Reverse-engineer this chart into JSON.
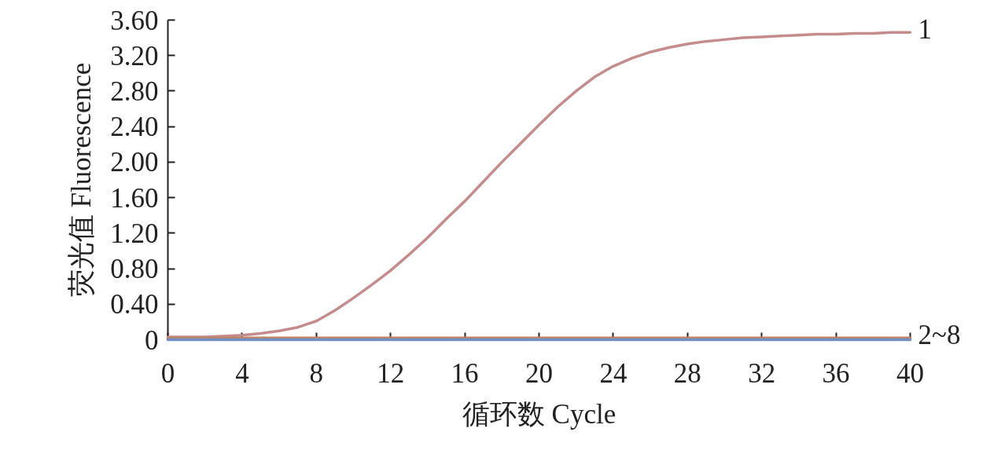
{
  "chart_data": {
    "type": "line",
    "xlabel": "循环数 Cycle",
    "ylabel": "荧光值 Fluorescence",
    "x": [
      0,
      1,
      2,
      3,
      4,
      5,
      6,
      7,
      8,
      9,
      10,
      11,
      12,
      13,
      14,
      15,
      16,
      17,
      18,
      19,
      20,
      21,
      22,
      23,
      24,
      25,
      26,
      27,
      28,
      29,
      30,
      31,
      32,
      33,
      34,
      35,
      36,
      37,
      38,
      39,
      40
    ],
    "xlim": [
      0,
      40
    ],
    "xticks": [
      0,
      4,
      8,
      12,
      16,
      20,
      24,
      28,
      32,
      36,
      40
    ],
    "ylim": [
      0,
      3.6
    ],
    "yticks": [
      0,
      {
        "value": 0.4,
        "label": "0.40"
      },
      {
        "value": 0.8,
        "label": "0.80"
      },
      {
        "value": 1.2,
        "label": "1.20"
      },
      {
        "value": 1.6,
        "label": "1.60"
      },
      {
        "value": 2.0,
        "label": "2.00"
      },
      {
        "value": 2.4,
        "label": "2.40"
      },
      {
        "value": 2.8,
        "label": "2.80"
      },
      {
        "value": 3.2,
        "label": "3.20"
      },
      {
        "value": 3.6,
        "label": "3.60"
      }
    ],
    "grid": false,
    "marker": "none",
    "line_style": "solid",
    "series": [
      {
        "name": "1",
        "color": "#c48c8c",
        "values": [
          0.03,
          0.03,
          0.03,
          0.04,
          0.05,
          0.07,
          0.1,
          0.14,
          0.21,
          0.33,
          0.47,
          0.62,
          0.78,
          0.96,
          1.15,
          1.36,
          1.56,
          1.78,
          2.0,
          2.21,
          2.42,
          2.62,
          2.8,
          2.96,
          3.08,
          3.17,
          3.24,
          3.29,
          3.33,
          3.36,
          3.38,
          3.4,
          3.41,
          3.42,
          3.43,
          3.44,
          3.44,
          3.45,
          3.45,
          3.46,
          3.46
        ]
      },
      {
        "name": "2~8",
        "color": "#bf8464",
        "values": [
          0.02,
          0.02,
          0.02,
          0.02,
          0.02,
          0.02,
          0.02,
          0.02,
          0.02,
          0.02,
          0.02,
          0.02,
          0.02,
          0.02,
          0.02,
          0.02,
          0.02,
          0.02,
          0.02,
          0.02,
          0.02,
          0.02,
          0.02,
          0.02,
          0.02,
          0.02,
          0.02,
          0.02,
          0.02,
          0.02,
          0.02,
          0.02,
          0.02,
          0.02,
          0.02,
          0.02,
          0.02,
          0.02,
          0.02,
          0.02,
          0.02
        ]
      },
      {
        "color": "#6f8fc4",
        "values": [
          0,
          0,
          0,
          0,
          0,
          0,
          0,
          0,
          0,
          0,
          0,
          0,
          0,
          0,
          0,
          0,
          0,
          0,
          0,
          0,
          0,
          0,
          0,
          0,
          0,
          0,
          0,
          0,
          0,
          0,
          0,
          0,
          0,
          0,
          0,
          0,
          0,
          0,
          0,
          0,
          0
        ]
      }
    ]
  }
}
